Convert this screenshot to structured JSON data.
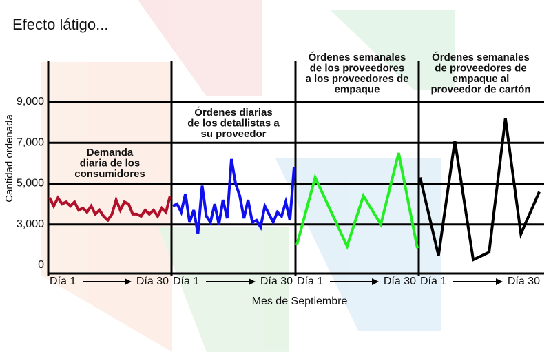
{
  "title": "Efecto látigo...",
  "chart_data": {
    "type": "line",
    "ylabel": "Cantidad ordenada",
    "xlabel": "Mes de Septiembre",
    "ylim": [
      0,
      11000
    ],
    "yticks": [
      0,
      {
        "value": 3000,
        "label": "3,000"
      },
      {
        "value": 5000,
        "label": "5,000"
      },
      {
        "value": 7000,
        "label": "7,000"
      },
      {
        "value": 9000,
        "label": "9,000"
      }
    ],
    "xlim": [
      1,
      30
    ],
    "xticks": [
      {
        "value": 1,
        "label": "Día 1"
      },
      {
        "value": 30,
        "label": "Día 30"
      }
    ],
    "grid": true,
    "series": [
      {
        "name": "Demanda diaria de los consumidores",
        "title_lines": [
          "Demanda",
          "diaria de los",
          "consumidores"
        ],
        "title_color": "#1a73c0",
        "color": "#b0102a",
        "x": [
          1,
          2,
          3,
          4,
          5,
          6,
          7,
          8,
          9,
          10,
          11,
          12,
          13,
          14,
          15,
          16,
          17,
          18,
          19,
          20,
          21,
          22,
          23,
          24,
          25,
          26,
          27,
          28,
          29,
          30
        ],
        "values": [
          4300,
          3900,
          4300,
          4000,
          4100,
          3900,
          4100,
          3700,
          3800,
          3600,
          3900,
          3500,
          3700,
          3400,
          3200,
          3500,
          4200,
          3700,
          4100,
          4000,
          3500,
          3500,
          3400,
          3700,
          3500,
          3700,
          3400,
          3800,
          3600,
          4400
        ]
      },
      {
        "name": "Órdenes diarias de los detallistas a su proveedor",
        "title_lines": [
          "Órdenes diarias",
          "de los detallistas a",
          "su proveedor"
        ],
        "title_color": "#1a73c0",
        "color": "#1010ee",
        "x": [
          1,
          2,
          3,
          4,
          5,
          6,
          7,
          8,
          9,
          10,
          11,
          12,
          13,
          14,
          15,
          16,
          17,
          18,
          19,
          20,
          21,
          22,
          23,
          24,
          25,
          26,
          27,
          28,
          29,
          30
        ],
        "values": [
          3900,
          4000,
          3600,
          4500,
          3100,
          3700,
          2300,
          4900,
          3400,
          3100,
          4000,
          3000,
          4200,
          3300,
          6200,
          5000,
          4400,
          3300,
          4200,
          3100,
          3200,
          2800,
          3900,
          3500,
          3100,
          3600,
          3400,
          4100,
          3200,
          5800
        ]
      },
      {
        "name": "Órdenes semanales de los proveedores a los proveedores de empaque",
        "title_lines": [
          "Órdenes semanales",
          "de los proveedores",
          "a los proveedores de",
          "empaque"
        ],
        "title_color": "#1a73c0",
        "color": "#22ee22",
        "x": [
          1,
          5.4,
          13.1,
          17,
          21.2,
          25.5,
          30
        ],
        "values": [
          1500,
          5300,
          1400,
          4400,
          3000,
          6500,
          1250
        ]
      },
      {
        "name": "Órdenes semanales de proveedores de empaque al proveedor de cartón",
        "title_lines": [
          "Órdenes semanales",
          "de proveedores de",
          "empaque al",
          "proveedor de cartón"
        ],
        "title_color": "#1a5fa8",
        "color": "#000000",
        "x": [
          1,
          5.4,
          9.3,
          13.7,
          17.5,
          21.4,
          25.1,
          29.5
        ],
        "values": [
          5300,
          700,
          7100,
          400,
          950,
          8200,
          2300,
          4600
        ]
      }
    ]
  }
}
